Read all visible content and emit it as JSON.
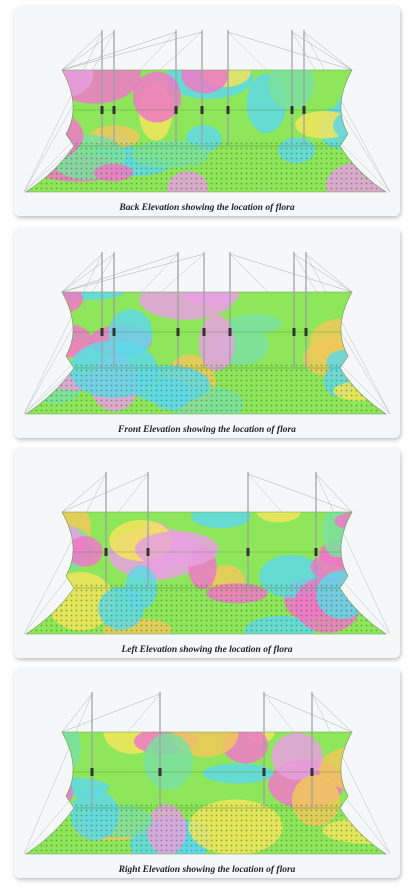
{
  "panels": [
    {
      "caption": "Back Elevation showing the location of flora"
    },
    {
      "caption": "Front Elevation showing the location of flora"
    },
    {
      "caption": "Left Elevation showing the location of flora"
    },
    {
      "caption": "Right Elevation showing the location of flora"
    }
  ]
}
